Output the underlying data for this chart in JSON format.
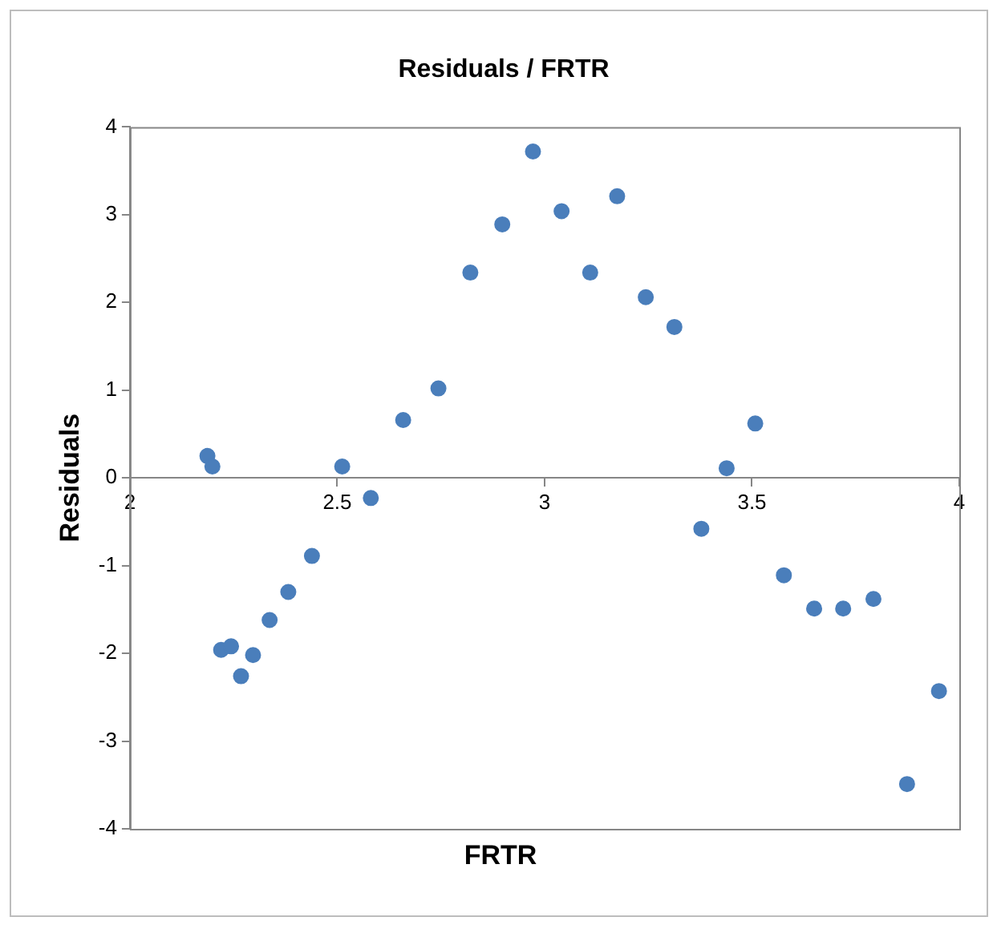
{
  "chart_data": {
    "type": "scatter",
    "title": "Residuals / FRTR",
    "xlabel": "FRTR",
    "ylabel": "Residuals",
    "xlim": [
      2,
      4
    ],
    "xticks": [
      2,
      2.5,
      3,
      3.5,
      4
    ],
    "ylim": [
      -4,
      4
    ],
    "yticks": [
      -4,
      -3,
      -2,
      -1,
      0,
      1,
      2,
      3,
      4
    ],
    "grid": false,
    "legend": false,
    "marker": "circle",
    "series": [
      {
        "color": "#4a7ebb",
        "x": [
          2.187,
          2.199,
          2.22,
          2.244,
          2.268,
          2.297,
          2.337,
          2.382,
          2.439,
          2.512,
          2.581,
          2.659,
          2.744,
          2.821,
          2.898,
          2.972,
          3.041,
          3.11,
          3.175,
          3.244,
          3.313,
          3.378,
          3.439,
          3.508,
          3.577,
          3.65,
          3.72,
          3.793,
          3.874,
          3.951
        ],
        "values": [
          0.25,
          0.13,
          -1.96,
          -1.92,
          -2.26,
          -2.02,
          -1.62,
          -1.3,
          -0.89,
          0.13,
          -0.23,
          0.66,
          1.02,
          2.34,
          2.89,
          3.72,
          3.04,
          2.34,
          3.21,
          2.06,
          1.72,
          -0.58,
          0.11,
          0.62,
          -1.11,
          -1.49,
          -1.49,
          -1.38,
          -3.49,
          -2.43
        ]
      }
    ]
  }
}
